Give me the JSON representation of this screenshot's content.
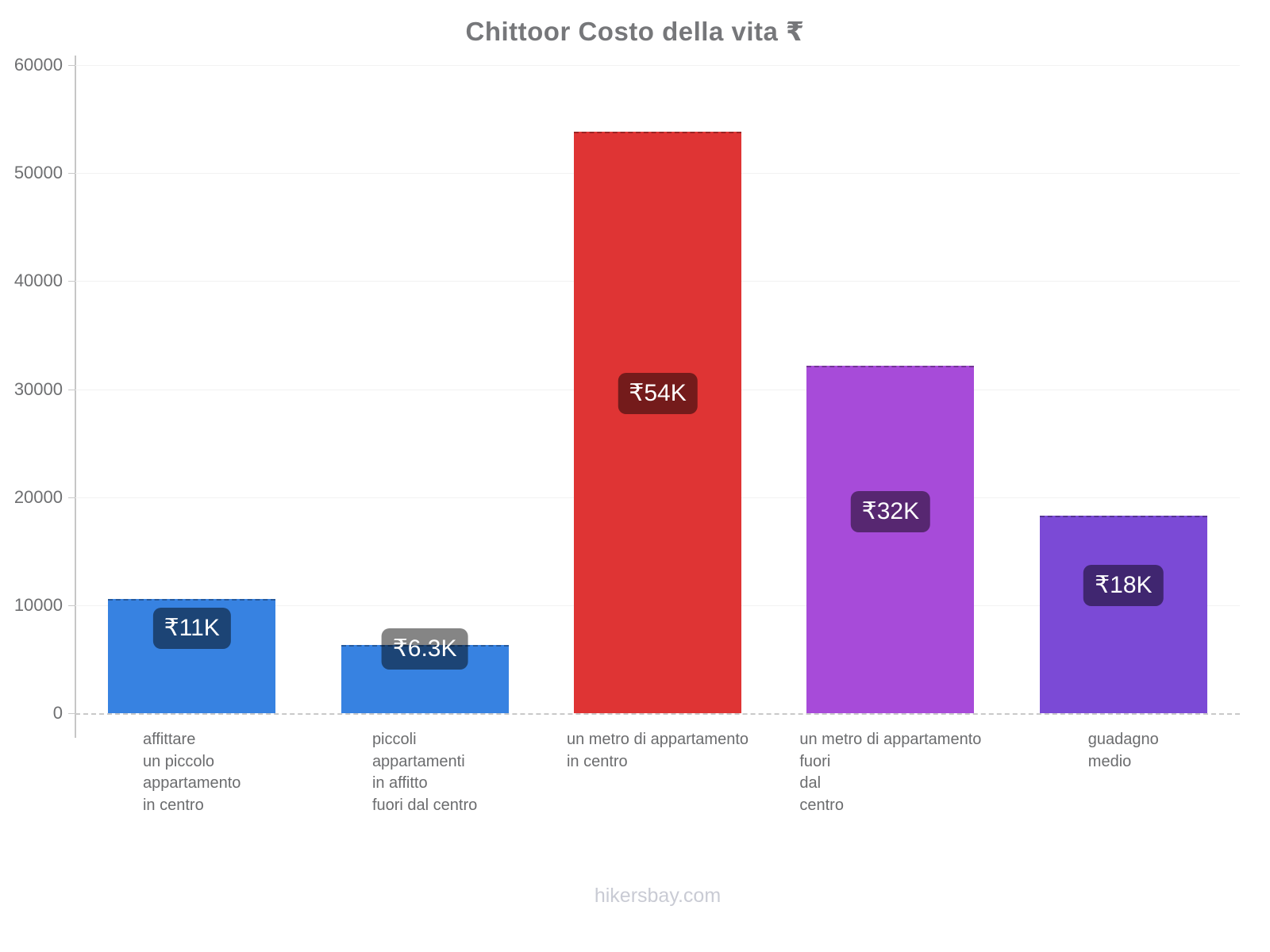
{
  "title": "Chittoor Costo della vita ₹",
  "footer": "hikersbay.com",
  "chart_data": {
    "type": "bar",
    "title": "Chittoor Costo della vita ₹",
    "currency_symbol": "₹",
    "categories": [
      "affittare\nun piccolo\nappartamento\nin centro",
      "piccoli\nappartamenti\nin affitto\nfuori dal centro",
      "un metro di appartamento\nin centro",
      "un metro di appartamento\nfuori\ndal\ncentro",
      "guadagno\nmedio"
    ],
    "values": [
      10600,
      6300,
      53800,
      32200,
      18300
    ],
    "value_labels": [
      "₹11K",
      "₹6.3K",
      "₹54K",
      "₹32K",
      "₹18K"
    ],
    "bar_colors": [
      "#3782e1",
      "#3782e1",
      "#df3434",
      "#a74bd9",
      "#7b4ad6"
    ],
    "value_label_bg": "rgba(0,0,0,0.48)",
    "value_label_text_color": "#ffffff",
    "ylim": [
      0,
      60000
    ],
    "yticks": [
      0,
      10000,
      20000,
      30000,
      40000,
      50000,
      60000
    ],
    "grid": "horizontal-faint",
    "legend_position": "none",
    "xlabel": "",
    "ylabel": ""
  }
}
